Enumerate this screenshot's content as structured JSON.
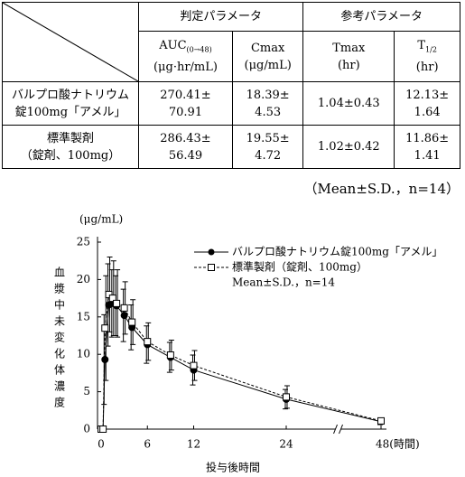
{
  "table": {
    "groups": [
      "判定パラメータ",
      "参考パラメータ"
    ],
    "columns": [
      {
        "name": "AUC",
        "sub": "(0→48)",
        "unit": "(μg·hr/mL)"
      },
      {
        "name": "Cmax",
        "unit": "(μg/mL)"
      },
      {
        "name": "Tmax",
        "unit": "(hr)"
      },
      {
        "name": "T",
        "sub": "1/2",
        "unit": "(hr)"
      }
    ],
    "rows": [
      {
        "label": [
          "バルプロ酸ナトリウム",
          "錠100mg「アメル」"
        ],
        "cells": [
          [
            "270.41±",
            "70.91"
          ],
          [
            "18.39±",
            "4.53"
          ],
          [
            "1.04±0.43"
          ],
          [
            "12.13±",
            "1.64"
          ]
        ]
      },
      {
        "label": [
          "標準製剤",
          "（錠剤、100mg）"
        ],
        "cells": [
          [
            "286.43±",
            "56.49"
          ],
          [
            "19.55±",
            "4.72"
          ],
          [
            "1.02±0.42"
          ],
          [
            "11.86±",
            "1.41"
          ]
        ]
      }
    ],
    "note": "（Mean±S.D.，n=14）"
  },
  "chart_data": {
    "type": "line",
    "y_unit": "(μg/mL)",
    "ylabel": "血漿中未変化体濃度",
    "xlabel": "投与後時間",
    "legend_note": "Mean±S.D.，n=14",
    "legend": "upper right",
    "x": [
      0,
      0.25,
      0.5,
      1,
      1.5,
      2,
      3,
      4,
      6,
      9,
      12,
      24,
      48
    ],
    "series": [
      {
        "name": "バルプロ酸ナトリウム錠100mg「アメル」",
        "color": "#000000",
        "marker": "circle",
        "dash": false,
        "values": [
          0,
          0,
          9.3,
          16.6,
          16.8,
          16.5,
          15.2,
          13.6,
          11.3,
          9.6,
          7.9,
          4.0,
          1.0
        ],
        "errors": [
          0,
          0,
          6,
          5.5,
          4.5,
          4,
          3.5,
          3,
          2.5,
          2,
          2,
          1.3,
          0.4
        ]
      },
      {
        "name": "標準製剤（錠剤、100mg）",
        "color": "#000000",
        "marker": "square",
        "dash": true,
        "values": [
          0,
          0,
          13.5,
          18.0,
          17.5,
          16.8,
          16.2,
          14.3,
          11.7,
          9.9,
          8.5,
          4.3,
          1.1
        ],
        "errors": [
          0,
          0,
          7,
          5,
          5,
          4.5,
          3.5,
          3,
          2.5,
          2,
          2,
          1.5,
          0.4
        ]
      }
    ],
    "xlim": [
      0,
      48
    ],
    "xticks": [
      0,
      6,
      12,
      24,
      {
        "value": 48,
        "label": "48(時間)"
      }
    ],
    "ylim": [
      0,
      25
    ],
    "yticks": [
      0,
      5,
      10,
      15,
      20,
      25
    ]
  }
}
